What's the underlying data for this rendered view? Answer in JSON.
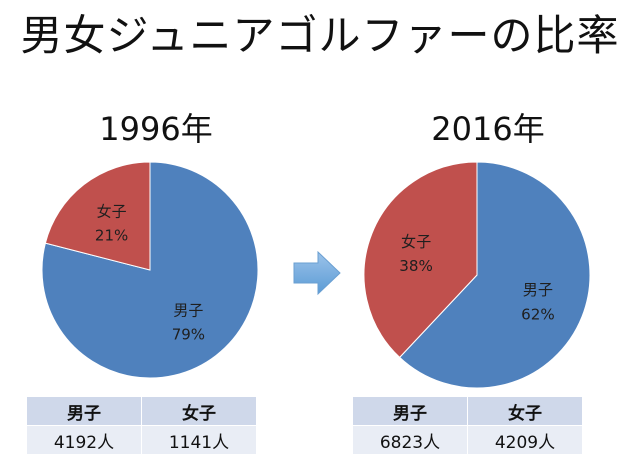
{
  "title": "男女ジュニアゴルファーの比率",
  "chart_data": [
    {
      "type": "pie",
      "title": "1996年",
      "slices": [
        {
          "label": "男子",
          "percent": 79,
          "percent_label": "79%",
          "color": "#4f81bd"
        },
        {
          "label": "女子",
          "percent": 21,
          "percent_label": "21%",
          "color": "#c0504d"
        }
      ],
      "table": {
        "headers": [
          "男子",
          "女子"
        ],
        "values": [
          "4192人",
          "1141人"
        ]
      }
    },
    {
      "type": "pie",
      "title": "2016年",
      "slices": [
        {
          "label": "男子",
          "percent": 62,
          "percent_label": "62%",
          "color": "#4f81bd"
        },
        {
          "label": "女子",
          "percent": 38,
          "percent_label": "38%",
          "color": "#c0504d"
        }
      ],
      "table": {
        "headers": [
          "男子",
          "女子"
        ],
        "values": [
          "6823人",
          "4209人"
        ]
      }
    }
  ],
  "arrow": {
    "icon": "right-arrow-icon",
    "color": "#5b9bd5"
  }
}
